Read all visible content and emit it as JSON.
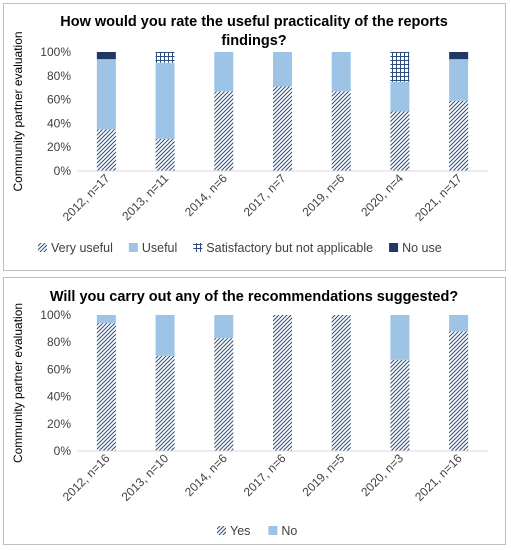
{
  "chart_data": [
    {
      "type": "bar",
      "stacked": true,
      "title": "How would you rate the useful practicality of the reports findings?",
      "ylabel": "Community partner evaluation",
      "xlabel": "",
      "ylim": [
        0,
        100
      ],
      "yticks": [
        "0%",
        "20%",
        "40%",
        "60%",
        "80%",
        "100%"
      ],
      "categories": [
        "2012, n=17",
        "2013, n=11",
        "2014, n=6",
        "2017, n=7",
        "2019, n=6",
        "2020, n=4",
        "2021, n=17"
      ],
      "series": [
        {
          "name": "Very useful",
          "color": "#2e4e7e",
          "pattern": "diag",
          "values": [
            35,
            27,
            67,
            71,
            67,
            50,
            59
          ]
        },
        {
          "name": "Useful",
          "color": "#9dc3e6",
          "pattern": "solid",
          "values": [
            59,
            64,
            33,
            29,
            33,
            25,
            35
          ]
        },
        {
          "name": "Satisfactory but not applicable",
          "color": "#2e4e7e",
          "pattern": "grid",
          "values": [
            0,
            9,
            0,
            0,
            0,
            25,
            0
          ]
        },
        {
          "name": "No use",
          "color": "#1f3864",
          "pattern": "solid",
          "values": [
            6,
            0,
            0,
            0,
            0,
            0,
            6
          ]
        }
      ],
      "grid": false,
      "legend_position": "bottom"
    },
    {
      "type": "bar",
      "stacked": true,
      "title": "Will you carry out any of the recommendations suggested?",
      "ylabel": "Community partner evaluation",
      "xlabel": "",
      "ylim": [
        0,
        100
      ],
      "yticks": [
        "0%",
        "20%",
        "40%",
        "60%",
        "80%",
        "100%"
      ],
      "categories": [
        "2012, n=16",
        "2013, n=10",
        "2014, n=6",
        "2017, n=6",
        "2019, n=5",
        "2020, n=3",
        "2021, n=16"
      ],
      "series": [
        {
          "name": "Yes",
          "color": "#2e4e7e",
          "pattern": "diag",
          "values": [
            94,
            70,
            83,
            100,
            100,
            67,
            88
          ]
        },
        {
          "name": "No",
          "color": "#9dc3e6",
          "pattern": "solid",
          "values": [
            6,
            30,
            17,
            0,
            0,
            33,
            12
          ]
        }
      ],
      "grid": false,
      "legend_position": "bottom"
    }
  ]
}
